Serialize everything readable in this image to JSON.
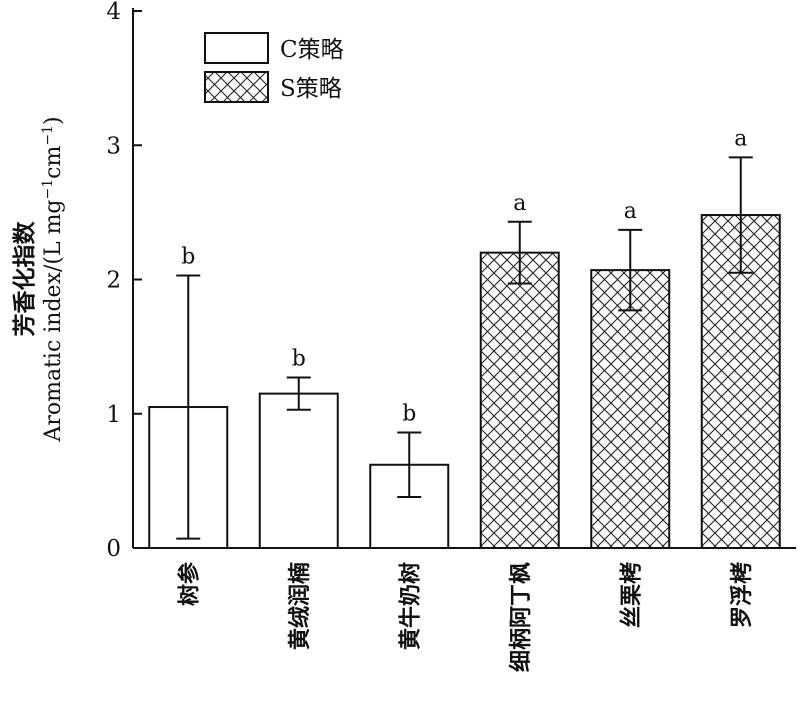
{
  "chart_data": {
    "type": "bar",
    "categories": [
      "树参",
      "黄绒润楠",
      "黄牛奶树",
      "细柄阿丁枫",
      "丝栗栲",
      "罗浮栲"
    ],
    "values": [
      1.05,
      1.15,
      0.62,
      2.2,
      2.07,
      2.48
    ],
    "errors": [
      0.98,
      0.12,
      0.24,
      0.23,
      0.3,
      0.43
    ],
    "significance": [
      "b",
      "b",
      "b",
      "a",
      "a",
      "a"
    ],
    "groups": [
      "C策略",
      "C策略",
      "C策略",
      "S策略",
      "S策略",
      "S策略"
    ],
    "legend": [
      {
        "label": "C策略",
        "pattern": "open"
      },
      {
        "label": "S策略",
        "pattern": "crosshatch"
      }
    ],
    "legend_position": "top-left",
    "ylabel_cn": "芳香化指数",
    "ylabel_en": "Aromatic index/(L mg",
    "ylabel_sup1": "−1",
    "ylabel_mid": "cm",
    "ylabel_sup2": "−1",
    "ylabel_end": ")",
    "xlabel": "",
    "title": "",
    "ylim": [
      0,
      4
    ],
    "yticks": [
      "0",
      "1",
      "2",
      "3",
      "4"
    ],
    "grid": false
  }
}
